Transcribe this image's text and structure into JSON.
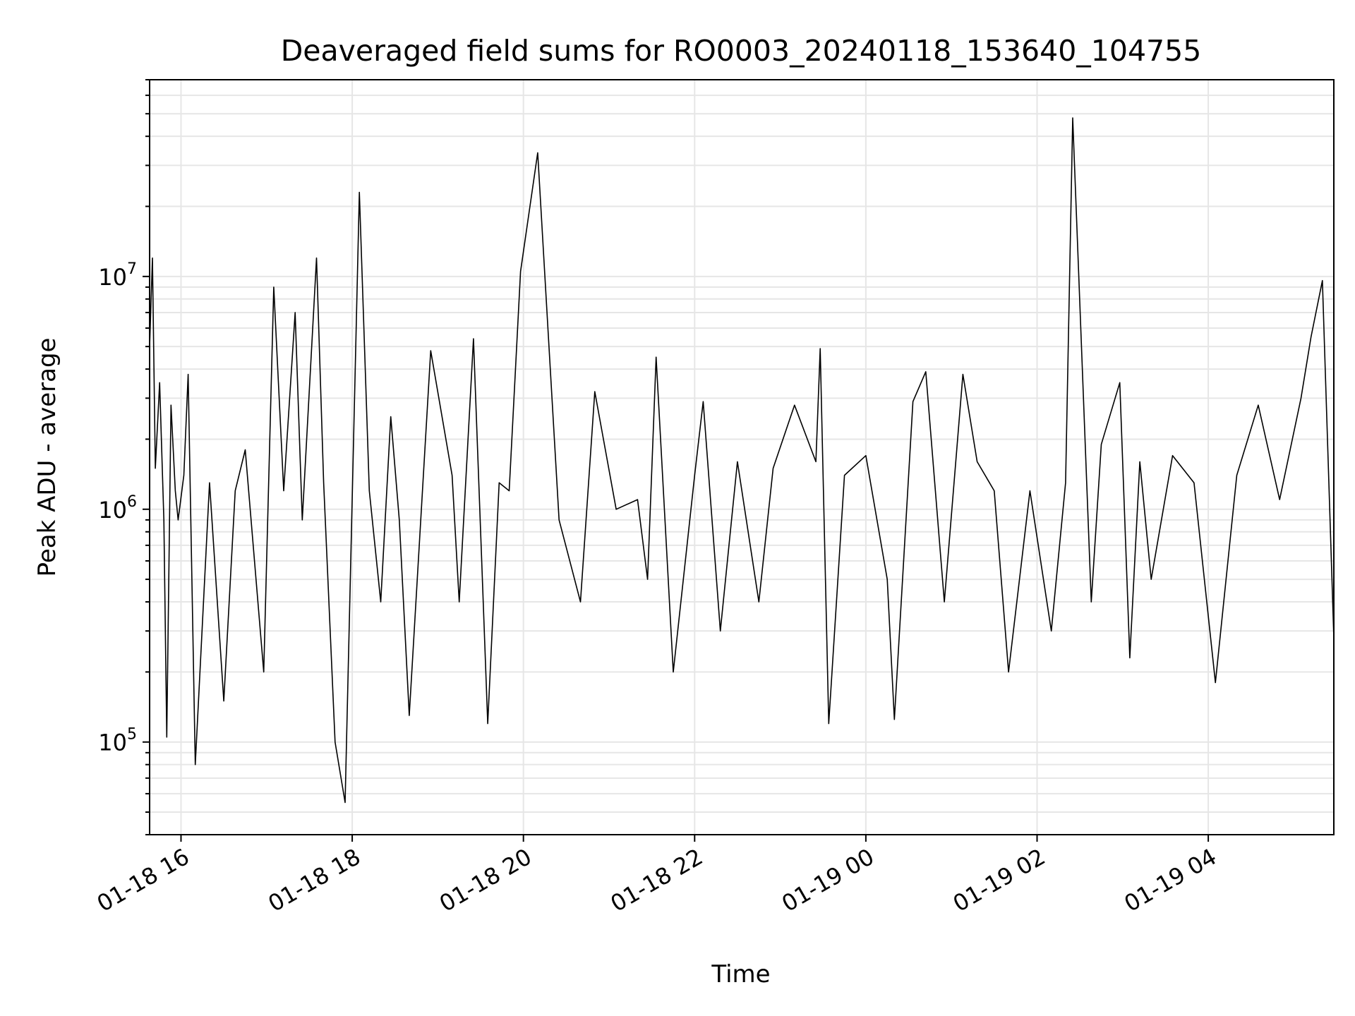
{
  "chart_data": {
    "type": "line",
    "title": "Deaveraged field sums for RO0003_20240118_153640_104755",
    "xlabel": "Time",
    "ylabel": "Peak ADU - average",
    "y_scale": "log",
    "ylim": [
      40000,
      70000000
    ],
    "xlim": [
      "2024-01-18 15:38",
      "2024-01-19 05:28"
    ],
    "x_ticks": [
      "2024-01-18 16:00",
      "2024-01-18 18:00",
      "2024-01-18 20:00",
      "2024-01-18 22:00",
      "2024-01-19 00:00",
      "2024-01-19 02:00",
      "2024-01-19 04:00"
    ],
    "x_tick_labels": [
      "01-18 16",
      "01-18 18",
      "01-18 20",
      "01-18 22",
      "01-19 00",
      "01-19 02",
      "01-19 04"
    ],
    "y_ticks": [
      100000,
      1000000,
      10000000
    ],
    "y_tick_base": "10",
    "y_tick_exponents": [
      "5",
      "6",
      "7"
    ],
    "grid": true,
    "line_color": "#000000",
    "grid_color": "#e6e6e6",
    "series": [
      {
        "x": [
          "2024-01-18 15:38",
          "2024-01-18 15:40",
          "2024-01-18 15:42",
          "2024-01-18 15:45",
          "2024-01-18 15:48",
          "2024-01-18 15:50",
          "2024-01-18 15:53",
          "2024-01-18 15:56",
          "2024-01-18 15:58",
          "2024-01-18 16:02",
          "2024-01-18 16:05",
          "2024-01-18 16:10",
          "2024-01-18 16:20",
          "2024-01-18 16:30",
          "2024-01-18 16:38",
          "2024-01-18 16:45",
          "2024-01-18 16:58",
          "2024-01-18 17:05",
          "2024-01-18 17:12",
          "2024-01-18 17:20",
          "2024-01-18 17:25",
          "2024-01-18 17:35",
          "2024-01-18 17:40",
          "2024-01-18 17:48",
          "2024-01-18 17:55",
          "2024-01-18 18:05",
          "2024-01-18 18:12",
          "2024-01-18 18:20",
          "2024-01-18 18:27",
          "2024-01-18 18:33",
          "2024-01-18 18:40",
          "2024-01-18 18:55",
          "2024-01-18 19:10",
          "2024-01-18 19:15",
          "2024-01-18 19:25",
          "2024-01-18 19:35",
          "2024-01-18 19:43",
          "2024-01-18 19:50",
          "2024-01-18 19:58",
          "2024-01-18 20:10",
          "2024-01-18 20:25",
          "2024-01-18 20:40",
          "2024-01-18 20:50",
          "2024-01-18 21:05",
          "2024-01-18 21:20",
          "2024-01-18 21:27",
          "2024-01-18 21:33",
          "2024-01-18 21:45",
          "2024-01-18 22:00",
          "2024-01-18 22:06",
          "2024-01-18 22:18",
          "2024-01-18 22:30",
          "2024-01-18 22:45",
          "2024-01-18 22:55",
          "2024-01-18 23:10",
          "2024-01-18 23:25",
          "2024-01-18 23:28",
          "2024-01-18 23:34",
          "2024-01-18 23:45",
          "2024-01-19 00:00",
          "2024-01-19 00:15",
          "2024-01-19 00:20",
          "2024-01-19 00:33",
          "2024-01-19 00:42",
          "2024-01-19 00:55",
          "2024-01-19 01:08",
          "2024-01-19 01:18",
          "2024-01-19 01:30",
          "2024-01-19 01:40",
          "2024-01-19 01:55",
          "2024-01-19 02:10",
          "2024-01-19 02:20",
          "2024-01-19 02:25",
          "2024-01-19 02:38",
          "2024-01-19 02:45",
          "2024-01-19 02:58",
          "2024-01-19 03:05",
          "2024-01-19 03:12",
          "2024-01-19 03:20",
          "2024-01-19 03:35",
          "2024-01-19 03:50",
          "2024-01-19 04:05",
          "2024-01-19 04:20",
          "2024-01-19 04:35",
          "2024-01-19 04:50",
          "2024-01-19 05:05",
          "2024-01-19 05:12",
          "2024-01-19 05:20",
          "2024-01-19 05:28"
        ],
        "y": [
          5000000,
          12000000,
          1500000,
          3500000,
          900000,
          105000,
          2800000,
          1200000,
          900000,
          1400000,
          3800000,
          80000,
          1300000,
          150000,
          1200000,
          1800000,
          200000,
          9000000,
          1200000,
          7000000,
          900000,
          12000000,
          1300000,
          100000,
          55000,
          23000000,
          1200000,
          400000,
          2500000,
          900000,
          130000,
          4800000,
          1400000,
          400000,
          5400000,
          120000,
          1300000,
          1200000,
          10500000,
          34000000,
          900000,
          400000,
          3200000,
          1000000,
          1100000,
          500000,
          4500000,
          200000,
          1400000,
          2900000,
          300000,
          1600000,
          400000,
          1500000,
          2800000,
          1600000,
          4900000,
          120000,
          1400000,
          1700000,
          500000,
          125000,
          2900000,
          3900000,
          400000,
          3800000,
          1600000,
          1200000,
          200000,
          1200000,
          300000,
          1300000,
          48000000,
          400000,
          1900000,
          3500000,
          230000,
          1600000,
          500000,
          1700000,
          1300000,
          180000,
          1400000,
          2800000,
          1100000,
          3000000,
          5500000,
          9600000,
          280000
        ]
      }
    ]
  }
}
